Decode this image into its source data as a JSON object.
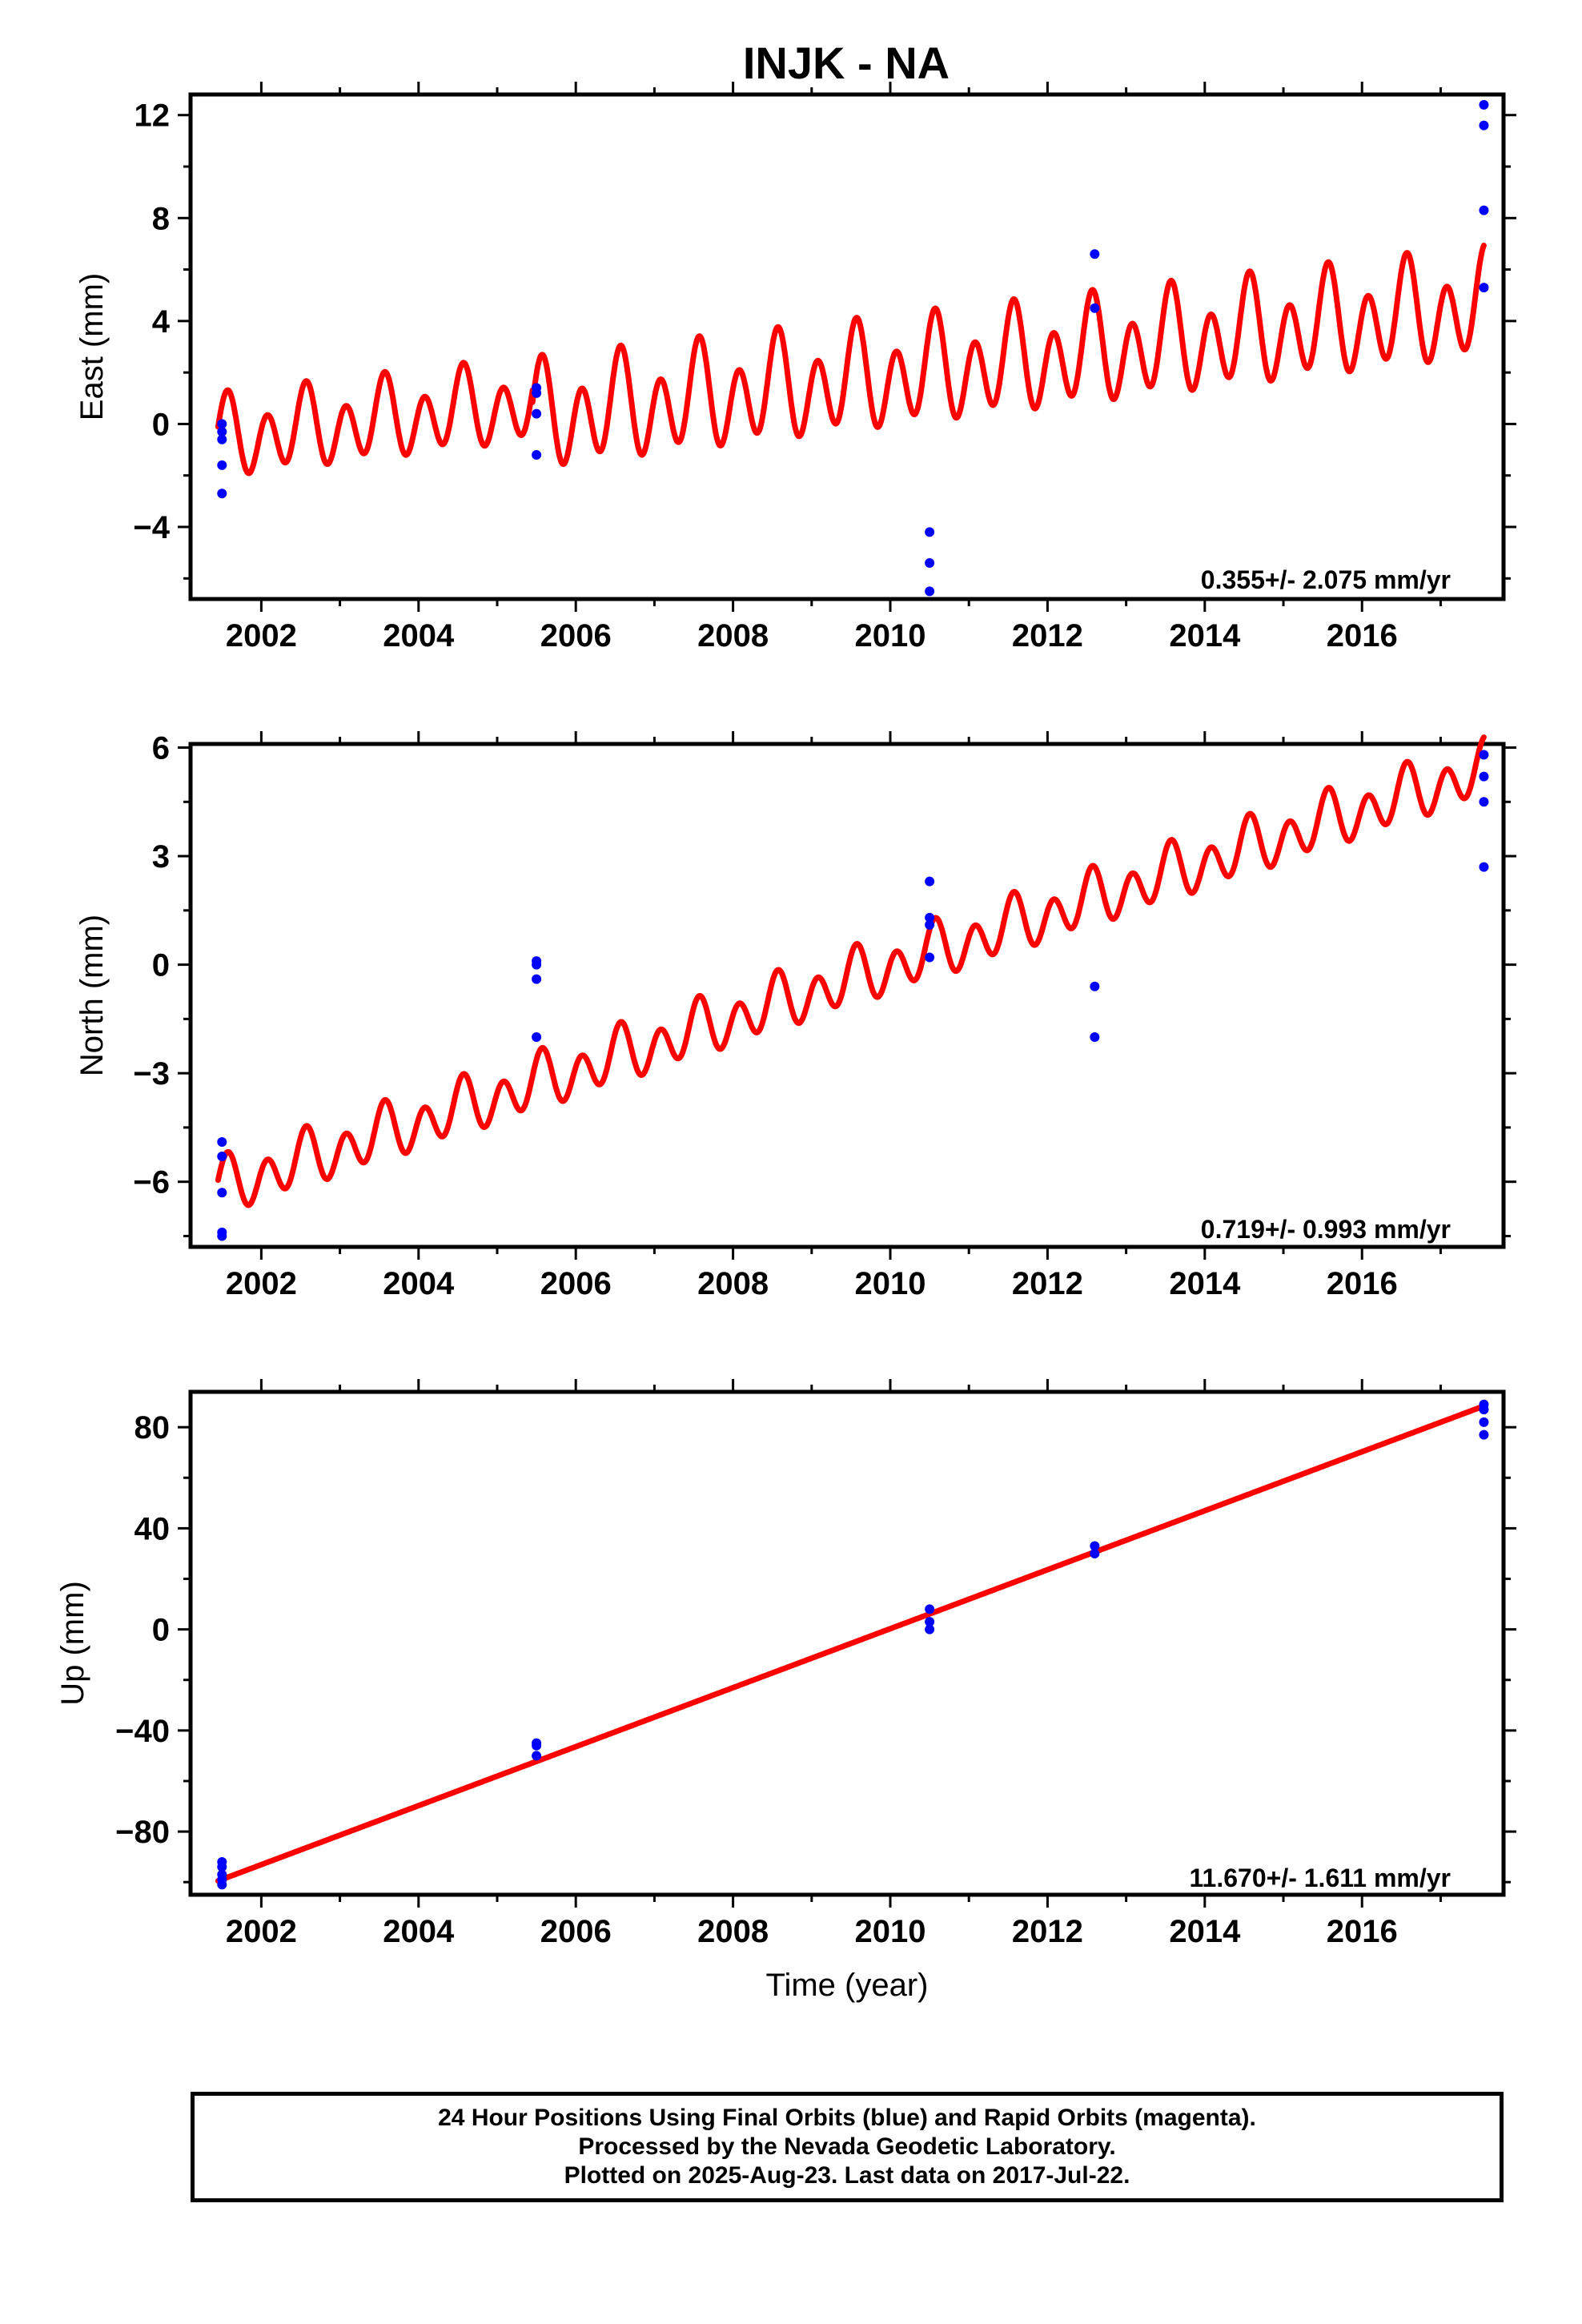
{
  "title": "INJK - NA",
  "chart_data": [
    {
      "type": "scatter",
      "ylabel": "East (mm)",
      "ylim": [
        -6.8,
        12.8
      ],
      "yticks": [
        -4,
        0,
        4,
        8,
        12
      ],
      "xlim": [
        2001.1,
        2017.8
      ],
      "xticks": [
        2002,
        2004,
        2006,
        2008,
        2010,
        2012,
        2014,
        2016
      ],
      "rate_label": "0.355+/- 2.075 mm/yr",
      "points": [
        {
          "x": 2001.5,
          "y": 0.0
        },
        {
          "x": 2001.5,
          "y": -0.3
        },
        {
          "x": 2001.5,
          "y": -0.6
        },
        {
          "x": 2001.5,
          "y": -1.6
        },
        {
          "x": 2001.5,
          "y": -2.7
        },
        {
          "x": 2005.5,
          "y": 1.4
        },
        {
          "x": 2005.5,
          "y": 1.2
        },
        {
          "x": 2005.5,
          "y": 0.4
        },
        {
          "x": 2005.5,
          "y": -1.2
        },
        {
          "x": 2010.5,
          "y": -4.2
        },
        {
          "x": 2010.5,
          "y": -5.4
        },
        {
          "x": 2010.5,
          "y": -6.5
        },
        {
          "x": 2012.6,
          "y": 6.6
        },
        {
          "x": 2012.6,
          "y": 4.5
        },
        {
          "x": 2017.55,
          "y": 12.4
        },
        {
          "x": 2017.55,
          "y": 11.6
        },
        {
          "x": 2017.55,
          "y": 8.3
        },
        {
          "x": 2017.55,
          "y": 5.3
        }
      ],
      "fit": {
        "segments": [
          {
            "start": 2001.45,
            "end": 2005.45,
            "level_at_start": -0.6,
            "rate": 0.355,
            "amplitude": 1.3,
            "period": 0.5
          },
          {
            "start": 2005.45,
            "end": 2017.55,
            "level_at_start": 0.2,
            "rate": 0.36,
            "amplitude": 1.7,
            "period": 0.5
          }
        ],
        "color": "#ff0000"
      },
      "point_color": "#0000ff"
    },
    {
      "type": "scatter",
      "ylabel": "North (mm)",
      "ylim": [
        -7.8,
        6.1
      ],
      "yticks": [
        -6,
        -3,
        0,
        3,
        6
      ],
      "xlim": [
        2001.1,
        2017.8
      ],
      "xticks": [
        2002,
        2004,
        2006,
        2008,
        2010,
        2012,
        2014,
        2016
      ],
      "rate_label": "0.719+/- 0.993 mm/yr",
      "points": [
        {
          "x": 2001.5,
          "y": -4.9
        },
        {
          "x": 2001.5,
          "y": -5.3
        },
        {
          "x": 2001.5,
          "y": -6.3
        },
        {
          "x": 2001.5,
          "y": -7.4
        },
        {
          "x": 2001.5,
          "y": -7.5
        },
        {
          "x": 2005.5,
          "y": 0.1
        },
        {
          "x": 2005.5,
          "y": 0.0
        },
        {
          "x": 2005.5,
          "y": -0.4
        },
        {
          "x": 2005.5,
          "y": -2.0
        },
        {
          "x": 2010.5,
          "y": 2.3
        },
        {
          "x": 2010.5,
          "y": 1.3
        },
        {
          "x": 2010.5,
          "y": 1.1
        },
        {
          "x": 2010.5,
          "y": 0.2
        },
        {
          "x": 2012.6,
          "y": -0.6
        },
        {
          "x": 2012.6,
          "y": -2.0
        },
        {
          "x": 2017.55,
          "y": 5.8
        },
        {
          "x": 2017.55,
          "y": 5.2
        },
        {
          "x": 2017.55,
          "y": 4.5
        },
        {
          "x": 2017.55,
          "y": 2.7
        }
      ],
      "fit": {
        "segments": [
          {
            "start": 2001.45,
            "end": 2017.55,
            "level_at_start": -6.2,
            "rate": 0.719,
            "amplitude": 0.65,
            "period": 0.5
          }
        ],
        "color": "#ff0000"
      },
      "point_color": "#0000ff"
    },
    {
      "type": "scatter",
      "ylabel": "Up (mm)",
      "xlabel": "Time (year)",
      "ylim": [
        -105,
        94
      ],
      "yticks": [
        -80,
        -40,
        0,
        40,
        80
      ],
      "xlim": [
        2001.1,
        2017.8
      ],
      "xticks": [
        2002,
        2004,
        2006,
        2008,
        2010,
        2012,
        2014,
        2016
      ],
      "rate_label": "11.670+/- 1.611 mm/yr",
      "points": [
        {
          "x": 2001.5,
          "y": -92
        },
        {
          "x": 2001.5,
          "y": -94
        },
        {
          "x": 2001.5,
          "y": -97
        },
        {
          "x": 2001.5,
          "y": -99
        },
        {
          "x": 2001.5,
          "y": -101
        },
        {
          "x": 2005.5,
          "y": -45
        },
        {
          "x": 2005.5,
          "y": -46
        },
        {
          "x": 2005.5,
          "y": -50
        },
        {
          "x": 2010.5,
          "y": 8
        },
        {
          "x": 2010.5,
          "y": 3
        },
        {
          "x": 2010.5,
          "y": 0
        },
        {
          "x": 2012.6,
          "y": 33
        },
        {
          "x": 2012.6,
          "y": 30
        },
        {
          "x": 2017.55,
          "y": 89
        },
        {
          "x": 2017.55,
          "y": 87
        },
        {
          "x": 2017.55,
          "y": 82
        },
        {
          "x": 2017.55,
          "y": 77
        }
      ],
      "fit": {
        "segments": [
          {
            "start": 2001.45,
            "end": 2017.55,
            "level_at_start": -99.5,
            "rate": 11.67,
            "amplitude": 0.0,
            "period": 0.5
          }
        ],
        "color": "#ff0000"
      },
      "point_color": "#0000ff"
    }
  ],
  "footer": {
    "line1": "24 Hour Positions Using Final Orbits (blue) and Rapid Orbits (magenta).",
    "line2": "Processed by the Nevada Geodetic Laboratory.",
    "line3": "Plotted on 2025-Aug-23. Last data on 2017-Jul-22."
  }
}
